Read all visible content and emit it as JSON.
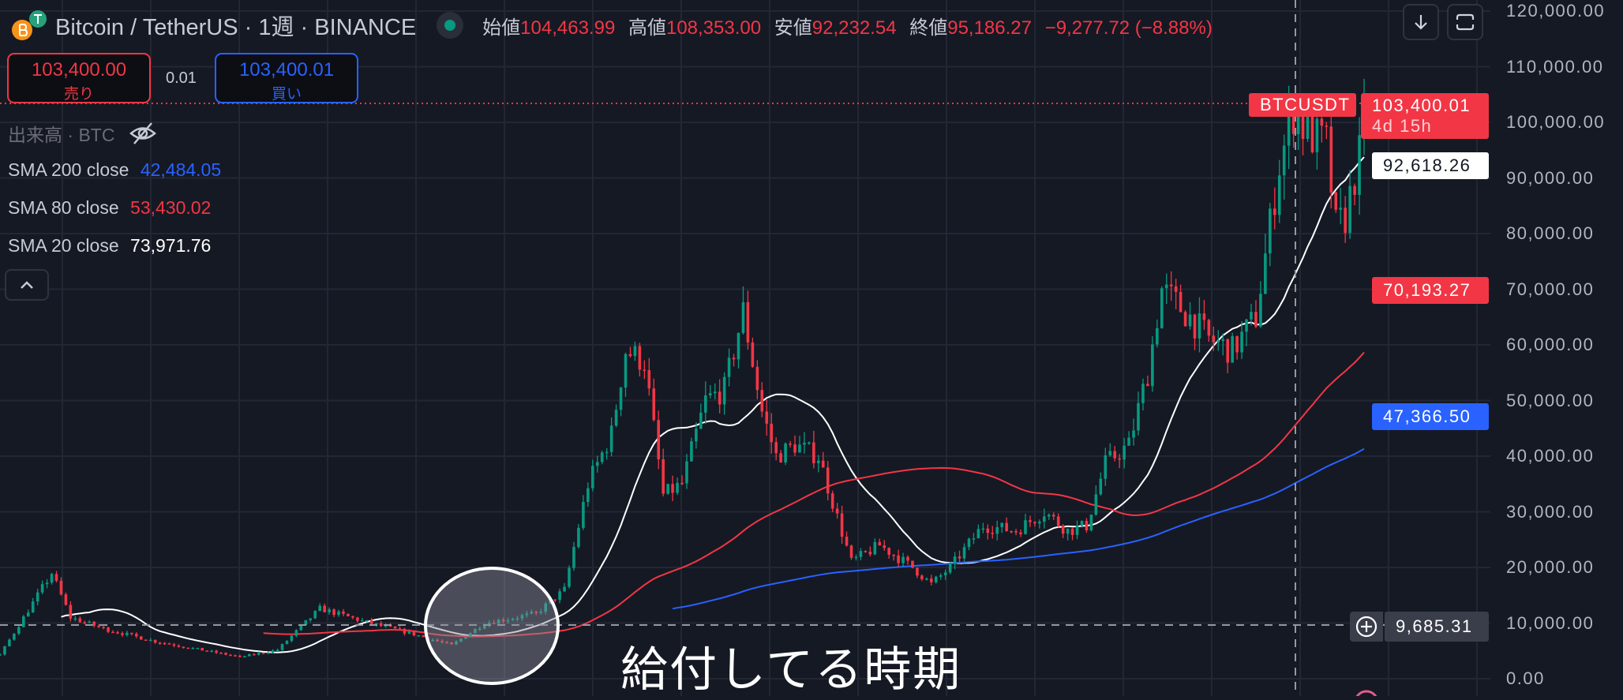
{
  "header": {
    "title": "Bitcoin / TetherUS · 1週 · BINANCE",
    "ohlc": {
      "open_label": "始値",
      "open": "104,463.99",
      "high_label": "高値",
      "high": "108,353.00",
      "low_label": "安値",
      "low": "92,232.54",
      "close_label": "終値",
      "close": "95,186.27",
      "change": "−9,277.72 (−8.88%)"
    }
  },
  "trade": {
    "sell_price": "103,400.00",
    "sell_label": "売り",
    "spread": "0.01",
    "buy_price": "103,400.01",
    "buy_label": "買い"
  },
  "indicators": {
    "volume": "出来高 · BTC",
    "sma200": {
      "label": "SMA 200 close",
      "value": "42,484.05"
    },
    "sma80": {
      "label": "SMA 80 close",
      "value": "53,430.02"
    },
    "sma20": {
      "label": "SMA 20 close",
      "value": "73,971.76"
    }
  },
  "toolbar": {
    "collapse_icon": "chevron-up-icon",
    "download_icon": "arrow-down-icon",
    "fullscreen_icon": "fullscreen-icon"
  },
  "price_tags": {
    "symbol": "BTCUSDT",
    "last": "103,400.01",
    "countdown": "4d 15h",
    "sma20": "92,618.26",
    "sma80": "70,193.27",
    "sma200": "47,366.50",
    "crosshair": "9,685.31"
  },
  "annotation": {
    "text": "給付してる時期"
  },
  "colors": {
    "up": "#089981",
    "down": "#f23645",
    "sma20": "#ffffff",
    "sma80": "#f23645",
    "sma200": "#2962ff",
    "background": "#151924"
  },
  "chart_data": {
    "type": "candlestick",
    "title": "Bitcoin / TetherUS · 1週 · BINANCE",
    "interval": "1週",
    "yaxis": {
      "ylim": [
        0,
        120000
      ],
      "ticks": [
        "120,000.00",
        "110,000.00",
        "100,000.00",
        "90,000.00",
        "80,000.00",
        "70,000.00",
        "60,000.00",
        "50,000.00",
        "40,000.00",
        "30,000.00",
        "20,000.00",
        "10,000.00",
        "0.00"
      ],
      "position": "right"
    },
    "grid": true,
    "approx_weekly_close_path": [
      [
        0,
        4300
      ],
      [
        11,
        19000
      ],
      [
        15,
        11000
      ],
      [
        22,
        9000
      ],
      [
        33,
        6700
      ],
      [
        51,
        3900
      ],
      [
        59,
        5200
      ],
      [
        68,
        12600
      ],
      [
        79,
        9900
      ],
      [
        88,
        8000
      ],
      [
        96,
        6000
      ],
      [
        103,
        10000
      ],
      [
        114,
        11700
      ],
      [
        120,
        16000
      ],
      [
        125,
        35000
      ],
      [
        130,
        44000
      ],
      [
        133,
        59000
      ],
      [
        137,
        57000
      ],
      [
        141,
        33000
      ],
      [
        145,
        35000
      ],
      [
        150,
        50000
      ],
      [
        154,
        52000
      ],
      [
        158,
        66000
      ],
      [
        162,
        48000
      ],
      [
        165,
        40000
      ],
      [
        169,
        42000
      ],
      [
        174,
        40000
      ],
      [
        178,
        29000
      ],
      [
        181,
        21000
      ],
      [
        187,
        24000
      ],
      [
        194,
        20000
      ],
      [
        198,
        17000
      ],
      [
        202,
        20000
      ],
      [
        209,
        27500
      ],
      [
        216,
        26600
      ],
      [
        222,
        30000
      ],
      [
        227,
        26600
      ],
      [
        231,
        27500
      ],
      [
        235,
        38700
      ],
      [
        240,
        42000
      ],
      [
        244,
        55000
      ],
      [
        247,
        70000
      ],
      [
        253,
        65000
      ],
      [
        257,
        61000
      ],
      [
        262,
        59000
      ],
      [
        267,
        65000
      ],
      [
        272,
        92500
      ],
      [
        275,
        102000
      ],
      [
        278,
        98000
      ],
      [
        282,
        96000
      ],
      [
        284,
        81000
      ],
      [
        286,
        83000
      ],
      [
        289,
        94000
      ],
      [
        290,
        103400
      ]
    ],
    "series": [
      {
        "name": "SMA 20 close",
        "last": 92618.26
      },
      {
        "name": "SMA 80 close",
        "last": 70193.27
      },
      {
        "name": "SMA 200 close",
        "last": 47366.5
      }
    ],
    "last_price": 103400.01,
    "crosshair_price": 9685.31
  }
}
